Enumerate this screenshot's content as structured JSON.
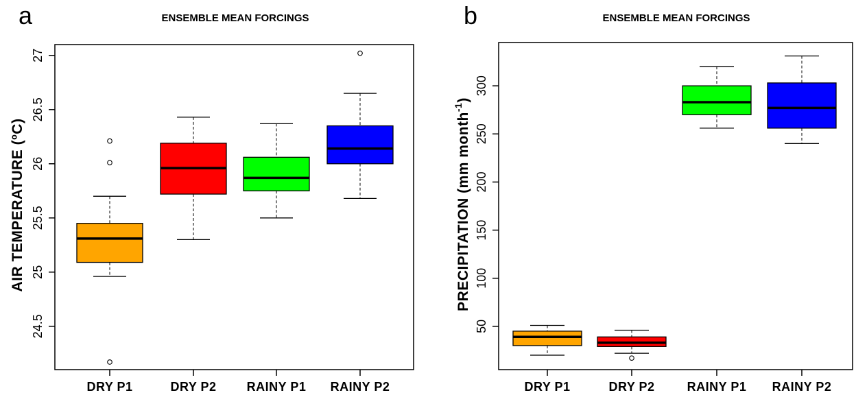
{
  "chart_data": [
    {
      "type": "boxplot",
      "panel_label": "a",
      "title": "ENSEMBLE MEAN FORCINGS",
      "ylabel": "AIR TEMPERATURE (ºC)",
      "xlabel": "",
      "ylim": [
        24.1,
        27.1
      ],
      "yticks": [
        24.5,
        25,
        25.5,
        26,
        26.5,
        27
      ],
      "ytick_labels": [
        "24.5",
        "25",
        "25.5",
        "26",
        "26.5",
        "27"
      ],
      "categories": [
        "DRY P1",
        "DRY P2",
        "RAINY P1",
        "RAINY P2"
      ],
      "colors": [
        "#ffa500",
        "#ff0000",
        "#00ff00",
        "#0000ff"
      ],
      "boxes": [
        {
          "whisker_low": 24.96,
          "q1": 25.09,
          "median": 25.31,
          "q3": 25.45,
          "whisker_high": 25.7,
          "outliers": [
            26.21,
            26.01,
            24.17
          ]
        },
        {
          "whisker_low": 25.3,
          "q1": 25.72,
          "median": 25.96,
          "q3": 26.19,
          "whisker_high": 26.43,
          "outliers": []
        },
        {
          "whisker_low": 25.5,
          "q1": 25.75,
          "median": 25.87,
          "q3": 26.06,
          "whisker_high": 26.37,
          "outliers": []
        },
        {
          "whisker_low": 25.68,
          "q1": 26.0,
          "median": 26.14,
          "q3": 26.35,
          "whisker_high": 26.65,
          "outliers": [
            27.02
          ]
        }
      ],
      "grid": false,
      "legend": "none"
    },
    {
      "type": "boxplot",
      "panel_label": "b",
      "title": "ENSEMBLE MEAN FORCINGS",
      "ylabel_main": "PRECIPITATION (mm month",
      "ylabel_sup": "-1",
      "ylabel_end": ")",
      "xlabel": "",
      "ylim": [
        5,
        345
      ],
      "yticks": [
        50,
        100,
        150,
        200,
        250,
        300
      ],
      "ytick_labels": [
        "50",
        "100",
        "150",
        "200",
        "250",
        "300"
      ],
      "categories": [
        "DRY P1",
        "DRY P2",
        "RAINY P1",
        "RAINY P2"
      ],
      "colors": [
        "#ffa500",
        "#ff0000",
        "#00ff00",
        "#0000ff"
      ],
      "boxes": [
        {
          "whisker_low": 20,
          "q1": 30,
          "median": 39,
          "q3": 45,
          "whisker_high": 51,
          "outliers": []
        },
        {
          "whisker_low": 22,
          "q1": 29,
          "median": 33,
          "q3": 39,
          "whisker_high": 46,
          "outliers": [
            17
          ]
        },
        {
          "whisker_low": 256,
          "q1": 270,
          "median": 283,
          "q3": 300,
          "whisker_high": 320,
          "outliers": []
        },
        {
          "whisker_low": 240,
          "q1": 256,
          "median": 277,
          "q3": 303,
          "whisker_high": 331,
          "outliers": []
        }
      ],
      "grid": false,
      "legend": "none"
    }
  ]
}
